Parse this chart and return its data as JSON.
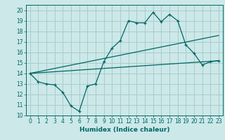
{
  "title": "",
  "xlabel": "Humidex (Indice chaleur)",
  "ylabel": "",
  "xlim": [
    -0.5,
    23.5
  ],
  "ylim": [
    10,
    20.5
  ],
  "yticks": [
    10,
    11,
    12,
    13,
    14,
    15,
    16,
    17,
    18,
    19,
    20
  ],
  "xticks": [
    0,
    1,
    2,
    3,
    4,
    5,
    6,
    7,
    8,
    9,
    10,
    11,
    12,
    13,
    14,
    15,
    16,
    17,
    18,
    19,
    20,
    21,
    22,
    23
  ],
  "bg_color": "#cce8e8",
  "grid_color": "#aacccc",
  "line_color": "#006666",
  "series1_x": [
    0,
    1,
    2,
    3,
    4,
    5,
    6,
    7,
    8,
    9,
    10,
    11,
    12,
    13,
    14,
    15,
    16,
    17,
    18,
    19,
    20,
    21,
    22,
    23
  ],
  "series1_y": [
    14.0,
    13.2,
    13.0,
    12.9,
    12.2,
    10.9,
    10.4,
    12.8,
    13.0,
    15.1,
    16.4,
    17.1,
    19.0,
    18.8,
    18.8,
    19.8,
    18.9,
    19.6,
    19.0,
    16.7,
    15.9,
    14.8,
    15.1,
    15.2
  ],
  "series2_x": [
    0,
    23
  ],
  "series2_y": [
    14.0,
    15.2
  ],
  "series3_x": [
    0,
    23
  ],
  "series3_y": [
    14.0,
    17.6
  ]
}
